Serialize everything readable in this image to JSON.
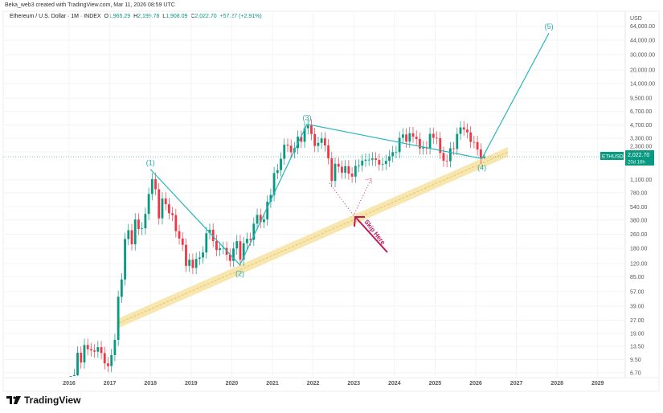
{
  "header": {
    "credit": "Beka_web3 created with TradingView.com, Mar 11, 2026 08:59 UTC",
    "symbol_desc": "Ethereum / U.S. Dollar · 1M · INDEX",
    "o_label": "O",
    "o": "1,965.29",
    "h_label": "H",
    "h": "2,199.78",
    "l_label": "L",
    "l": "1,908.09",
    "c_label": "C",
    "c": "2,022.70",
    "change": "+57.27 (+2.91%)"
  },
  "price_axis": {
    "currency": "USD",
    "ticks": [
      "64,000.00",
      "44,000.00",
      "30,000.00",
      "20,000.00",
      "14,000.00",
      "9,500.00",
      "6,700.00",
      "4,700.00",
      "3,300.00",
      "2,300.00",
      "1,100.00",
      "780.00",
      "540.00",
      "380.00",
      "260.00",
      "180.00",
      "120.00",
      "85.00",
      "57.00",
      "39.00",
      "27.00",
      "19.00",
      "13.50",
      "9.50",
      "6.70"
    ],
    "symbol_tag": "ETHUSD",
    "last_price": "2,022.70",
    "countdown": "20d 16h"
  },
  "time_axis": {
    "ticks": [
      "2016",
      "2017",
      "2018",
      "2019",
      "2020",
      "2021",
      "2022",
      "2023",
      "2024",
      "2025",
      "2026",
      "2027",
      "2028",
      "2029"
    ]
  },
  "annotations": {
    "waves": [
      {
        "label": "(1)",
        "t": 2018.0,
        "p": 1450
      },
      {
        "label": "(2)",
        "t": 2020.2,
        "p": 116
      },
      {
        "label": "(3)",
        "t": 2021.85,
        "p": 4780
      },
      {
        "label": "(4)",
        "t": 2026.15,
        "p": 1925
      },
      {
        "label": "(5)",
        "t": 2027.8,
        "p": 53000
      }
    ],
    "skip_text": "Skip Here"
  },
  "brand": {
    "name": "TradingView"
  },
  "colors": {
    "up": "#089981",
    "down": "#f23645",
    "wave": "#26b5bd",
    "band": "#f7e2a1",
    "arrow": "#c2185b"
  },
  "chart_data": {
    "type": "candlestick",
    "title": "Ethereum / U.S. Dollar · 1M · INDEX",
    "scale": "log",
    "start": "2016-01",
    "interval": "1M",
    "closes": [
      2.2,
      6.3,
      11.4,
      8.8,
      14,
      12.5,
      12.1,
      11.7,
      13.2,
      11.3,
      8.6,
      8.0,
      10.7,
      16,
      50,
      79,
      230,
      290,
      200,
      385,
      300,
      305,
      447,
      755,
      1118,
      855,
      397,
      670,
      577,
      455,
      433,
      283,
      233,
      197,
      113,
      133,
      107,
      136,
      141,
      161,
      268,
      294,
      218,
      172,
      180,
      182,
      152,
      129,
      179,
      217,
      133,
      206,
      231,
      225,
      345,
      435,
      360,
      386,
      615,
      737,
      1314,
      1418,
      1918,
      2773,
      2707,
      2275,
      2536,
      3433,
      3001,
      4288,
      4631,
      3683,
      2688,
      2918,
      3282,
      2727,
      1942,
      1067,
      1679,
      1553,
      1328,
      1572,
      1295,
      1196,
      1585,
      1605,
      1822,
      1870,
      1874,
      1934,
      1857,
      1645,
      1671,
      1815,
      2052,
      2282,
      2283,
      3340,
      3647,
      3015,
      3762,
      3433,
      3232,
      2513,
      2602,
      2519,
      3705,
      3337,
      3300,
      2237,
      1822,
      1794,
      2528,
      2486,
      3698,
      4391,
      4145,
      3850,
      2990,
      2970,
      2450,
      1965.29,
      2022.7
    ],
    "last_candle": {
      "open": 1965.29,
      "high": 2199.78,
      "low": 1908.09,
      "close": 2022.7
    },
    "ylim": [
      6.7,
      64000
    ],
    "xlim": [
      2015.9,
      2029.6
    ],
    "grid": true
  }
}
